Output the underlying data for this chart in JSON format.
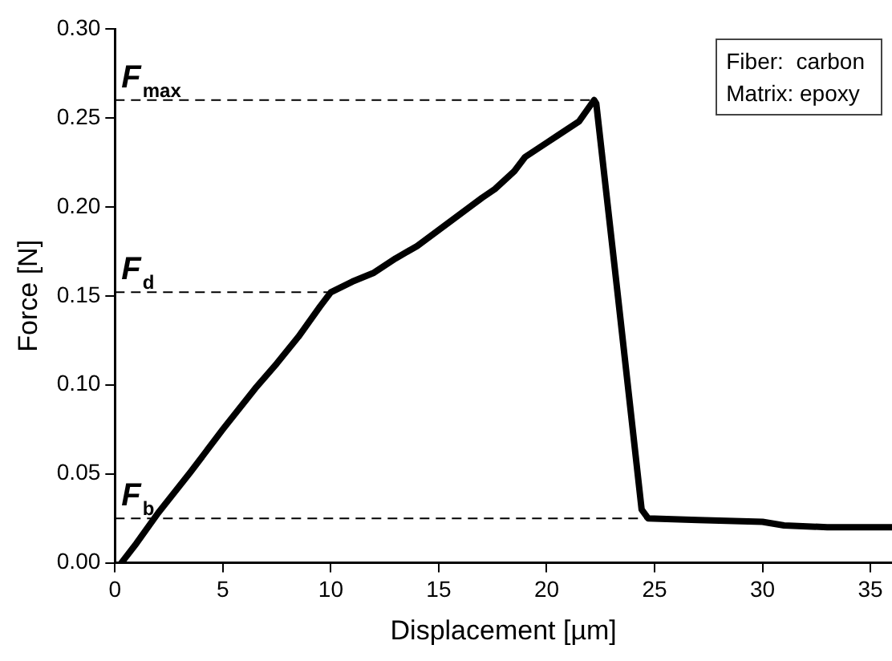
{
  "chart_data": {
    "type": "line",
    "xlabel": "Displacement [µm]",
    "ylabel": "Force [N]",
    "x": [
      0.3,
      1,
      2,
      3.5,
      5,
      6.5,
      7.5,
      8.5,
      9.5,
      10,
      11,
      12,
      13,
      14,
      15,
      16,
      17,
      17.6,
      18.5,
      19,
      20,
      20.5,
      21.5,
      22.2,
      22.3,
      23.3,
      24.4,
      24.7,
      27,
      30,
      31,
      33,
      36
    ],
    "series": [
      {
        "color": "#000000",
        "values": [
          0,
          0.011,
          0.028,
          0.051,
          0.075,
          0.098,
          0.112,
          0.127,
          0.144,
          0.152,
          0.158,
          0.163,
          0.171,
          0.178,
          0.187,
          0.196,
          0.205,
          0.21,
          0.22,
          0.228,
          0.236,
          0.24,
          0.248,
          0.26,
          0.258,
          0.15,
          0.03,
          0.025,
          0.024,
          0.023,
          0.021,
          0.02,
          0.02
        ]
      }
    ],
    "xlim": [
      0,
      36
    ],
    "xticks": [
      0,
      5,
      10,
      15,
      20,
      25,
      30,
      35
    ],
    "ylim": [
      0,
      0.3
    ],
    "yticks": [
      {
        "value": 0,
        "label": "0.00"
      },
      {
        "value": 0.05,
        "label": "0.05"
      },
      {
        "value": 0.1,
        "label": "0.10"
      },
      {
        "value": 0.15,
        "label": "0.15"
      },
      {
        "value": 0.2,
        "label": "0.20"
      },
      {
        "value": 0.25,
        "label": "0.25"
      },
      {
        "value": 0.3,
        "label": "0.30"
      }
    ],
    "ref_lines": [
      {
        "axis": "y",
        "value": 0.26,
        "label": "F$_{max}$",
        "line_style": "dashed"
      },
      {
        "axis": "y",
        "value": 0.152,
        "label": "F$_{d}$",
        "line_style": "dashed"
      },
      {
        "axis": "y",
        "value": 0.025,
        "label": "F$_{b}$",
        "line_style": "dashed"
      }
    ],
    "annotations": [
      "Fiber:  carbon",
      "Matrix: epoxy"
    ],
    "grid": false,
    "legend": false,
    "marker": "none",
    "line_style": "solid"
  }
}
